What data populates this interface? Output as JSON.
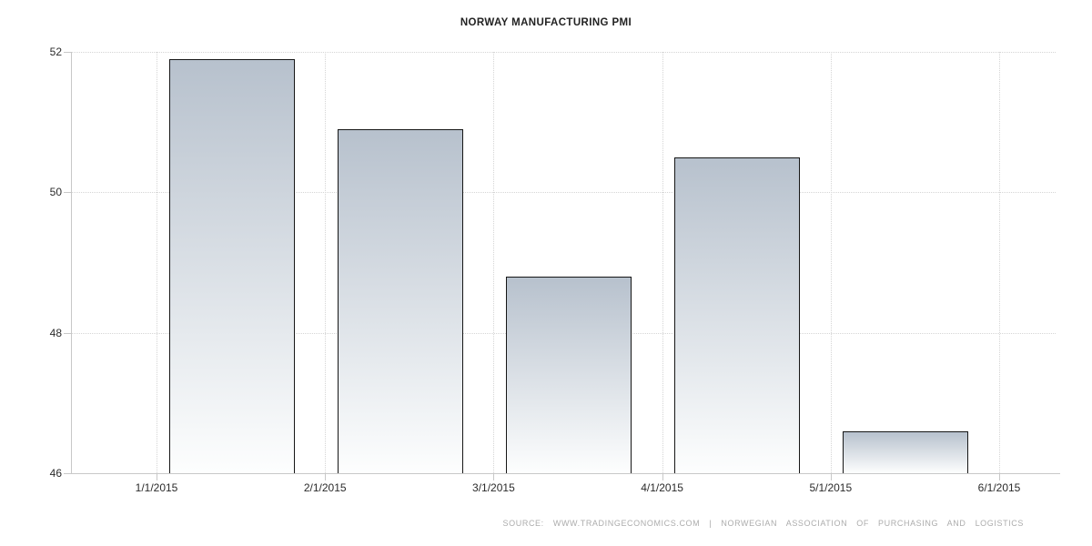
{
  "chart_data": {
    "type": "bar",
    "title": "NORWAY MANUFACTURING PMI",
    "x_tick_labels": [
      "1/1/2015",
      "2/1/2015",
      "3/1/2015",
      "4/1/2015",
      "5/1/2015",
      "6/1/2015"
    ],
    "series": [
      {
        "name": "Norway Manufacturing PMI",
        "values": [
          51.9,
          50.9,
          48.8,
          50.5,
          46.6
        ]
      }
    ],
    "y_ticks": [
      46,
      48,
      50,
      52
    ],
    "ylim": [
      46,
      52
    ],
    "xlabel": "",
    "ylabel": "",
    "grid": "dotted",
    "legend_position": "none",
    "bars_align": "between-ticks",
    "colors": {
      "bar_gradient_top": "#b7c1cd",
      "bar_gradient_bottom": "#fdfefe",
      "bar_border": "#161616",
      "axis": "#c8c8c8",
      "grid": "#d5d5d5",
      "title_text": "#222222",
      "tick_text": "#2b2b2b",
      "source_text": "#acacac"
    }
  },
  "source": {
    "text": "SOURCE: WWW.TRADINGECONOMICS.COM | NORWEGIAN ASSOCIATION OF PURCHASING AND LOGISTICS"
  }
}
